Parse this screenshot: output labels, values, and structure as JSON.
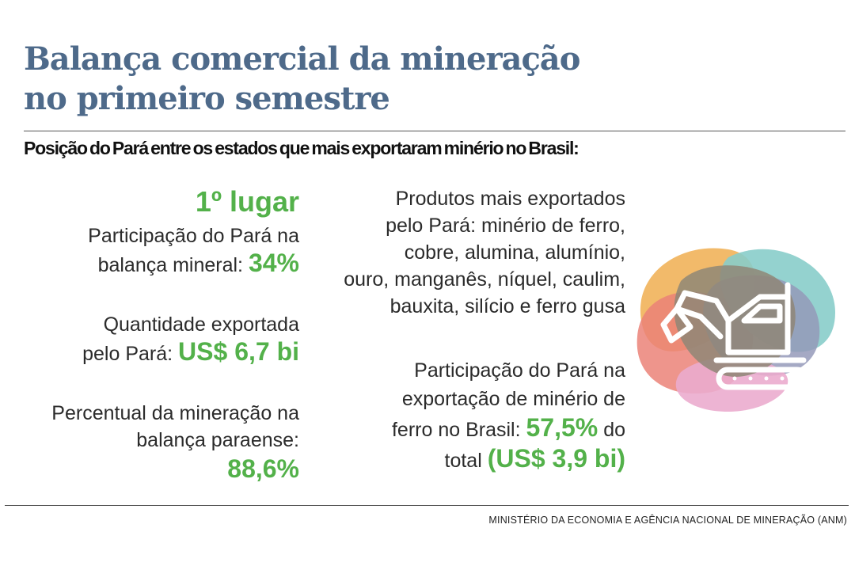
{
  "header": {
    "title_line1": "Balança comercial da mineração",
    "title_line2": "no primeiro semestre",
    "subtitle": "Posição do Pará entre os estados que mais exportaram minério no Brasil:"
  },
  "left": {
    "rank": "1º lugar",
    "participacao": {
      "line1": "Participação do Pará na",
      "line2_text": "balança mineral:",
      "value": "34%"
    },
    "quantidade": {
      "line1": "Quantidade exportada",
      "line2_text": "pelo Pará:",
      "value": "US$ 6,7 bi"
    },
    "percentual": {
      "line1": "Percentual da mineração na",
      "line2": "balança paraense:",
      "value": "88,6%"
    }
  },
  "middle": {
    "produtos": {
      "lines": [
        "Produtos mais exportados",
        "pelo Pará: minério de ferro,",
        "cobre, alumina, alumínio,",
        "ouro, manganês, níquel, caulim,",
        "bauxita, silício e ferro gusa"
      ]
    },
    "ferro": {
      "line1": "Participação do Pará na",
      "line2": "exportação de minério de",
      "line3_text": "ferro no Brasil:",
      "value": "57,5%",
      "line3_suffix": "do",
      "line4_text": "total",
      "value2": "(US$ 3,9 bi)"
    }
  },
  "illustration": {
    "icon": "excavator-icon",
    "colors": [
      "#f1b35a",
      "#e9746a",
      "#7cc8c4",
      "#8a8fb3",
      "#e9a3c9",
      "#847a68"
    ]
  },
  "footer": {
    "source": "MINISTÉRIO DA ECONOMIA E AGÊNCIA NACIONAL DE MINERAÇÃO (ANM)"
  }
}
